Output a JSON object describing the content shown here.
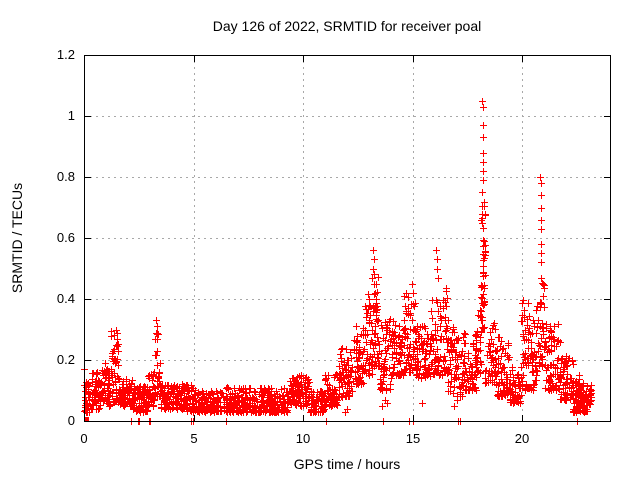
{
  "window": {
    "background": "#ffffff"
  },
  "chart_data": {
    "type": "scatter",
    "title": "Day 126 of 2022, SRMTID for receiver poal",
    "xlabel": "GPS time / hours",
    "ylabel": "SRMTID / TECUs",
    "series_name": "SRMTID",
    "marker": "plus",
    "marker_color": "#ff0000",
    "grid": true,
    "grid_color": "#a8a8a8",
    "axis_color": "#000000",
    "legend": "none",
    "xlim": [
      0,
      24
    ],
    "ylim": [
      0,
      1.2
    ],
    "xticks": [
      0,
      5,
      10,
      15,
      20
    ],
    "xtick_labels": [
      "0",
      "5",
      "10",
      "15",
      "20"
    ],
    "yticks": [
      0,
      0.2,
      0.4,
      0.6,
      0.8,
      1,
      1.2
    ],
    "ytick_labels": [
      "0",
      "0.2",
      "0.4",
      "0.6",
      "0.8",
      "1",
      "1.2"
    ],
    "seed": 7,
    "bands_comment": "dense scatter approximated as time bands: [t_start_h, t_end_h, y_min_TECU, y_max_TECU, n_points, (optional uniform flag)]",
    "bands": [
      [
        0.0,
        0.3,
        0.03,
        0.13,
        35
      ],
      [
        0.3,
        0.7,
        0.04,
        0.16,
        45
      ],
      [
        0.7,
        1.2,
        0.05,
        0.17,
        55
      ],
      [
        1.2,
        1.6,
        0.06,
        0.3,
        45
      ],
      [
        1.6,
        2.2,
        0.05,
        0.14,
        65
      ],
      [
        2.2,
        2.9,
        0.03,
        0.12,
        70
      ],
      [
        2.9,
        3.2,
        0.05,
        0.16,
        30
      ],
      [
        3.2,
        3.45,
        0.08,
        0.33,
        30
      ],
      [
        3.45,
        4.1,
        0.04,
        0.12,
        65
      ],
      [
        4.1,
        4.7,
        0.04,
        0.13,
        60
      ],
      [
        4.7,
        5.2,
        0.03,
        0.12,
        50
      ],
      [
        5.2,
        6.4,
        0.03,
        0.1,
        115
      ],
      [
        6.4,
        8.0,
        0.03,
        0.11,
        155
      ],
      [
        8.0,
        9.3,
        0.03,
        0.11,
        130
      ],
      [
        9.3,
        10.3,
        0.05,
        0.15,
        100
      ],
      [
        10.3,
        11.0,
        0.03,
        0.1,
        70
      ],
      [
        11.0,
        11.6,
        0.05,
        0.16,
        60
      ],
      [
        11.6,
        12.3,
        0.08,
        0.24,
        70
      ],
      [
        12.3,
        12.8,
        0.12,
        0.32,
        55
      ],
      [
        12.8,
        13.15,
        0.15,
        0.42,
        40
      ],
      [
        13.15,
        13.45,
        0.18,
        0.5,
        40
      ],
      [
        13.45,
        14.0,
        0.1,
        0.35,
        55
      ],
      [
        14.0,
        14.6,
        0.15,
        0.33,
        60
      ],
      [
        14.6,
        15.1,
        0.16,
        0.42,
        55
      ],
      [
        15.1,
        15.8,
        0.14,
        0.32,
        70
      ],
      [
        15.8,
        16.25,
        0.15,
        0.4,
        50
      ],
      [
        16.25,
        16.6,
        0.15,
        0.45,
        40
      ],
      [
        16.6,
        17.3,
        0.08,
        0.33,
        70
      ],
      [
        17.3,
        17.9,
        0.1,
        0.3,
        60
      ],
      [
        17.9,
        18.12,
        0.15,
        0.4,
        25
      ],
      [
        18.12,
        18.3,
        0.3,
        0.72,
        45,
        1
      ],
      [
        18.3,
        18.8,
        0.12,
        0.35,
        50
      ],
      [
        18.8,
        19.4,
        0.08,
        0.28,
        60
      ],
      [
        19.4,
        19.95,
        0.06,
        0.18,
        55
      ],
      [
        19.95,
        20.7,
        0.1,
        0.4,
        80
      ],
      [
        20.7,
        21.05,
        0.18,
        0.46,
        40
      ],
      [
        21.05,
        21.7,
        0.1,
        0.33,
        70
      ],
      [
        21.7,
        22.3,
        0.07,
        0.22,
        65
      ],
      [
        22.3,
        22.95,
        0.03,
        0.14,
        90
      ],
      [
        22.95,
        23.15,
        0.05,
        0.12,
        20
      ]
    ],
    "notable_points": [
      [
        0.02,
        0.17
      ],
      [
        0.95,
        0.19
      ],
      [
        1.05,
        0.17
      ],
      [
        1.48,
        0.3
      ],
      [
        1.52,
        0.29
      ],
      [
        1.5,
        0.27
      ],
      [
        1.46,
        0.25
      ],
      [
        1.53,
        0.23
      ],
      [
        3.3,
        0.33
      ],
      [
        3.32,
        0.31
      ],
      [
        3.28,
        0.29
      ],
      [
        3.33,
        0.27
      ],
      [
        13.18,
        0.56
      ],
      [
        13.22,
        0.53
      ],
      [
        13.2,
        0.5
      ],
      [
        13.16,
        0.47
      ],
      [
        13.24,
        0.45
      ],
      [
        14.97,
        0.45
      ],
      [
        15.02,
        0.42
      ],
      [
        16.08,
        0.56
      ],
      [
        16.12,
        0.53
      ],
      [
        16.1,
        0.5
      ],
      [
        16.14,
        0.47
      ],
      [
        18.18,
        1.05
      ],
      [
        18.22,
        1.03
      ],
      [
        18.2,
        0.97
      ],
      [
        18.21,
        0.93
      ],
      [
        18.19,
        0.88
      ],
      [
        18.22,
        0.85
      ],
      [
        18.2,
        0.82
      ],
      [
        18.21,
        0.79
      ],
      [
        18.18,
        0.75
      ],
      [
        20.82,
        0.8
      ],
      [
        20.86,
        0.78
      ],
      [
        20.84,
        0.74
      ],
      [
        20.85,
        0.7
      ],
      [
        20.83,
        0.66
      ],
      [
        20.86,
        0.63
      ],
      [
        20.85,
        0.58
      ],
      [
        20.84,
        0.55
      ],
      [
        20.86,
        0.52
      ],
      [
        20.83,
        0.47
      ],
      [
        22.6,
        0.15
      ],
      [
        13.6,
        0.05
      ],
      [
        13.72,
        0.07
      ],
      [
        13.82,
        0.06
      ],
      [
        15.4,
        0.06
      ],
      [
        16.9,
        0.05
      ],
      [
        17.0,
        0.07
      ],
      [
        11.9,
        0.03
      ],
      [
        12.0,
        0.04
      ]
    ],
    "zero_value_times": [
      2.15,
      2.45,
      2.52,
      2.95,
      3.02,
      4.88,
      4.97,
      6.48,
      11.02,
      13.65,
      14.85,
      15.02,
      17.08,
      17.15,
      22.5
    ],
    "origin_square_point": [
      0.08,
      0.008
    ]
  }
}
